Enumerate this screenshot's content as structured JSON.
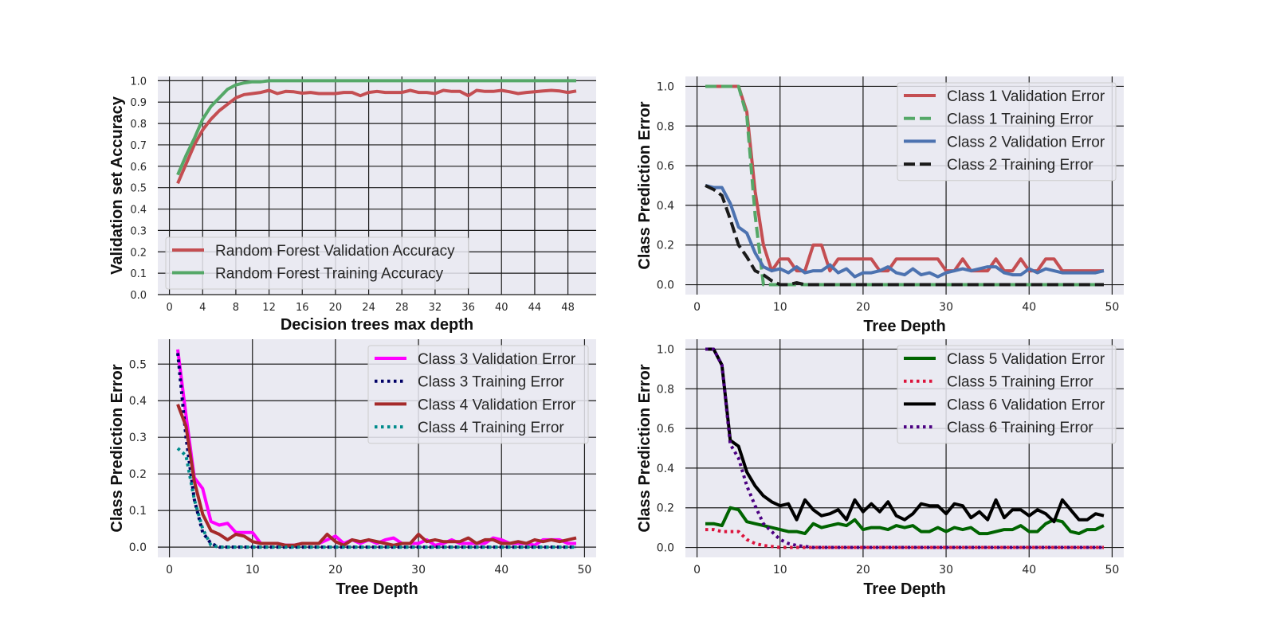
{
  "chart_data": [
    {
      "type": "line",
      "xlabel": "Decision trees max depth",
      "ylabel": "Validation set Accuracy",
      "xlim": [
        -1.4,
        51.4
      ],
      "ylim": [
        0.0,
        1.02
      ],
      "xticks": [
        "0",
        "4",
        "8",
        "12",
        "16",
        "20",
        "24",
        "28",
        "32",
        "36",
        "40",
        "44",
        "48"
      ],
      "yticks": [
        "0.0",
        "0.1",
        "0.2",
        "0.3",
        "0.4",
        "0.5",
        "0.6",
        "0.7",
        "0.8",
        "0.9",
        "1.0"
      ],
      "grid": true,
      "legend": "lower-left",
      "x": [
        1,
        2,
        3,
        4,
        5,
        6,
        7,
        8,
        9,
        10,
        11,
        12,
        13,
        14,
        15,
        16,
        17,
        18,
        19,
        20,
        21,
        22,
        23,
        24,
        25,
        26,
        27,
        28,
        29,
        30,
        31,
        32,
        33,
        34,
        35,
        36,
        37,
        38,
        39,
        40,
        41,
        42,
        43,
        44,
        45,
        46,
        47,
        48,
        49
      ],
      "series": [
        {
          "name": "Random Forest Validation Accuracy",
          "color": "#c44e52",
          "style": "solid",
          "values": [
            0.52,
            0.61,
            0.7,
            0.77,
            0.82,
            0.86,
            0.89,
            0.92,
            0.935,
            0.94,
            0.945,
            0.955,
            0.94,
            0.95,
            0.948,
            0.942,
            0.945,
            0.94,
            0.94,
            0.94,
            0.945,
            0.945,
            0.93,
            0.945,
            0.95,
            0.945,
            0.945,
            0.945,
            0.955,
            0.945,
            0.945,
            0.94,
            0.955,
            0.95,
            0.95,
            0.93,
            0.955,
            0.95,
            0.95,
            0.955,
            0.948,
            0.94,
            0.945,
            0.948,
            0.952,
            0.955,
            0.952,
            0.945,
            0.952
          ]
        },
        {
          "name": "Random Forest Training Accuracy",
          "color": "#55a868",
          "style": "solid",
          "values": [
            0.56,
            0.65,
            0.73,
            0.82,
            0.88,
            0.92,
            0.96,
            0.98,
            0.99,
            0.995,
            0.995,
            1.0,
            1.0,
            1.0,
            1.0,
            1.0,
            1.0,
            1.0,
            1.0,
            1.0,
            1.0,
            1.0,
            1.0,
            1.0,
            1.0,
            1.0,
            1.0,
            1.0,
            1.0,
            1.0,
            1.0,
            1.0,
            1.0,
            1.0,
            1.0,
            1.0,
            1.0,
            1.0,
            1.0,
            1.0,
            1.0,
            1.0,
            1.0,
            1.0,
            1.0,
            1.0,
            1.0,
            1.0,
            1.0
          ]
        }
      ]
    },
    {
      "type": "line",
      "xlabel": "Tree Depth",
      "ylabel": "Class Prediction Error",
      "xlim": [
        -1.4,
        51.4
      ],
      "ylim": [
        -0.05,
        1.05
      ],
      "xticks": [
        "0",
        "10",
        "20",
        "30",
        "40",
        "50"
      ],
      "yticks": [
        "0.0",
        "0.2",
        "0.4",
        "0.6",
        "0.8",
        "1.0"
      ],
      "grid": true,
      "legend": "upper-right",
      "x": [
        1,
        2,
        3,
        4,
        5,
        6,
        7,
        8,
        9,
        10,
        11,
        12,
        13,
        14,
        15,
        16,
        17,
        18,
        19,
        20,
        21,
        22,
        23,
        24,
        25,
        26,
        27,
        28,
        29,
        30,
        31,
        32,
        33,
        34,
        35,
        36,
        37,
        38,
        39,
        40,
        41,
        42,
        43,
        44,
        45,
        46,
        47,
        48,
        49
      ],
      "series": [
        {
          "name": "Class 1 Validation Error",
          "color": "#c44e52",
          "style": "solid",
          "values": [
            1.0,
            1.0,
            1.0,
            1.0,
            1.0,
            0.87,
            0.47,
            0.2,
            0.07,
            0.13,
            0.13,
            0.07,
            0.07,
            0.2,
            0.2,
            0.07,
            0.13,
            0.13,
            0.13,
            0.13,
            0.13,
            0.07,
            0.07,
            0.13,
            0.13,
            0.13,
            0.13,
            0.13,
            0.13,
            0.07,
            0.07,
            0.13,
            0.07,
            0.07,
            0.07,
            0.13,
            0.07,
            0.07,
            0.13,
            0.07,
            0.07,
            0.13,
            0.13,
            0.07,
            0.07,
            0.07,
            0.07,
            0.07,
            0.07
          ]
        },
        {
          "name": "Class 1 Training Error",
          "color": "#55a868",
          "style": "dashed",
          "values": [
            1.0,
            1.0,
            1.0,
            1.0,
            1.0,
            0.85,
            0.35,
            0.0,
            0.0,
            0.0,
            0.0,
            0.0,
            0.0,
            0.0,
            0.0,
            0.0,
            0.0,
            0.0,
            0.0,
            0.0,
            0.0,
            0.0,
            0.0,
            0.0,
            0.0,
            0.0,
            0.0,
            0.0,
            0.0,
            0.0,
            0.0,
            0.0,
            0.0,
            0.0,
            0.0,
            0.0,
            0.0,
            0.0,
            0.0,
            0.0,
            0.0,
            0.0,
            0.0,
            0.0,
            0.0,
            0.0,
            0.0,
            0.0,
            0.0
          ]
        },
        {
          "name": "Class 2 Validation Error",
          "color": "#4c72b0",
          "style": "solid",
          "values": [
            0.5,
            0.49,
            0.49,
            0.41,
            0.29,
            0.26,
            0.16,
            0.09,
            0.07,
            0.08,
            0.06,
            0.09,
            0.06,
            0.07,
            0.07,
            0.1,
            0.06,
            0.08,
            0.04,
            0.06,
            0.06,
            0.07,
            0.09,
            0.06,
            0.05,
            0.08,
            0.05,
            0.06,
            0.04,
            0.06,
            0.07,
            0.08,
            0.07,
            0.08,
            0.09,
            0.09,
            0.06,
            0.05,
            0.05,
            0.08,
            0.06,
            0.08,
            0.07,
            0.06,
            0.06,
            0.06,
            0.06,
            0.06,
            0.07
          ]
        },
        {
          "name": "Class 2 Training Error",
          "color": "#1a1a1a",
          "style": "dashed",
          "values": [
            0.5,
            0.48,
            0.45,
            0.33,
            0.2,
            0.14,
            0.07,
            0.05,
            0.02,
            0.0,
            0.0,
            0.01,
            0.0,
            0.0,
            0.0,
            0.0,
            0.0,
            0.0,
            0.0,
            0.0,
            0.0,
            0.0,
            0.0,
            0.0,
            0.0,
            0.0,
            0.0,
            0.0,
            0.0,
            0.0,
            0.0,
            0.0,
            0.0,
            0.0,
            0.0,
            0.0,
            0.0,
            0.0,
            0.0,
            0.0,
            0.0,
            0.0,
            0.0,
            0.0,
            0.0,
            0.0,
            0.0,
            0.0,
            0.0
          ]
        }
      ]
    },
    {
      "type": "line",
      "xlabel": "Tree Depth",
      "ylabel": "Class Prediction Error",
      "xlim": [
        -1.4,
        51.4
      ],
      "ylim": [
        -0.028,
        0.568
      ],
      "xticks": [
        "0",
        "10",
        "20",
        "30",
        "40",
        "50"
      ],
      "yticks": [
        "0.0",
        "0.1",
        "0.2",
        "0.3",
        "0.4",
        "0.5"
      ],
      "grid": true,
      "legend": "upper-right",
      "x": [
        1,
        2,
        3,
        4,
        5,
        6,
        7,
        8,
        9,
        10,
        11,
        12,
        13,
        14,
        15,
        16,
        17,
        18,
        19,
        20,
        21,
        22,
        23,
        24,
        25,
        26,
        27,
        28,
        29,
        30,
        31,
        32,
        33,
        34,
        35,
        36,
        37,
        38,
        39,
        40,
        41,
        42,
        43,
        44,
        45,
        46,
        47,
        48,
        49
      ],
      "series": [
        {
          "name": "Class 3 Validation Error",
          "color": "#ff00ff",
          "style": "solid",
          "values": [
            0.54,
            0.36,
            0.19,
            0.16,
            0.07,
            0.06,
            0.065,
            0.04,
            0.04,
            0.04,
            0.01,
            0.01,
            0.01,
            0.005,
            0.005,
            0.01,
            0.01,
            0.01,
            0.02,
            0.03,
            0.01,
            0.02,
            0.01,
            0.02,
            0.01,
            0.02,
            0.025,
            0.01,
            0.01,
            0.01,
            0.02,
            0.005,
            0.01,
            0.02,
            0.01,
            0.01,
            0.01,
            0.01,
            0.025,
            0.02,
            0.01,
            0.01,
            0.01,
            0.005,
            0.02,
            0.02,
            0.02,
            0.01,
            0.01
          ]
        },
        {
          "name": "Class 3 Training Error",
          "color": "#000066",
          "style": "dotted",
          "values": [
            0.53,
            0.3,
            0.13,
            0.04,
            0.01,
            0.0,
            0.0,
            0.0,
            0.0,
            0.0,
            0.0,
            0.0,
            0.0,
            0.0,
            0.0,
            0.0,
            0.0,
            0.0,
            0.0,
            0.0,
            0.0,
            0.0,
            0.0,
            0.0,
            0.0,
            0.0,
            0.0,
            0.0,
            0.0,
            0.0,
            0.0,
            0.0,
            0.0,
            0.0,
            0.0,
            0.0,
            0.0,
            0.0,
            0.0,
            0.0,
            0.0,
            0.0,
            0.0,
            0.0,
            0.0,
            0.0,
            0.0,
            0.0,
            0.0
          ]
        },
        {
          "name": "Class 4 Validation Error",
          "color": "#a52a2a",
          "style": "solid",
          "values": [
            0.39,
            0.33,
            0.18,
            0.09,
            0.045,
            0.035,
            0.02,
            0.035,
            0.03,
            0.015,
            0.01,
            0.01,
            0.01,
            0.005,
            0.005,
            0.01,
            0.01,
            0.01,
            0.035,
            0.015,
            0.005,
            0.02,
            0.015,
            0.02,
            0.015,
            0.01,
            0.005,
            0.01,
            0.01,
            0.035,
            0.015,
            0.02,
            0.015,
            0.015,
            0.015,
            0.025,
            0.01,
            0.02,
            0.02,
            0.01,
            0.01,
            0.015,
            0.01,
            0.02,
            0.015,
            0.02,
            0.015,
            0.02,
            0.025
          ]
        },
        {
          "name": "Class 4 Training Error",
          "color": "#008b8b",
          "style": "dotted",
          "values": [
            0.27,
            0.25,
            0.13,
            0.05,
            0.005,
            0.0,
            0.0,
            0.0,
            0.0,
            0.0,
            0.0,
            0.0,
            0.0,
            0.0,
            0.0,
            0.0,
            0.0,
            0.0,
            0.0,
            0.0,
            0.0,
            0.0,
            0.0,
            0.0,
            0.0,
            0.0,
            0.0,
            0.0,
            0.0,
            0.0,
            0.0,
            0.0,
            0.0,
            0.0,
            0.0,
            0.0,
            0.0,
            0.0,
            0.0,
            0.0,
            0.0,
            0.0,
            0.0,
            0.0,
            0.0,
            0.0,
            0.0,
            0.0,
            0.0
          ]
        }
      ]
    },
    {
      "type": "line",
      "xlabel": "Tree Depth",
      "ylabel": "Class Prediction Error",
      "xlim": [
        -1.4,
        51.4
      ],
      "ylim": [
        -0.05,
        1.05
      ],
      "xticks": [
        "0",
        "10",
        "20",
        "30",
        "40",
        "50"
      ],
      "yticks": [
        "0.0",
        "0.2",
        "0.4",
        "0.6",
        "0.8",
        "1.0"
      ],
      "grid": true,
      "legend": "upper-right",
      "x": [
        1,
        2,
        3,
        4,
        5,
        6,
        7,
        8,
        9,
        10,
        11,
        12,
        13,
        14,
        15,
        16,
        17,
        18,
        19,
        20,
        21,
        22,
        23,
        24,
        25,
        26,
        27,
        28,
        29,
        30,
        31,
        32,
        33,
        34,
        35,
        36,
        37,
        38,
        39,
        40,
        41,
        42,
        43,
        44,
        45,
        46,
        47,
        48,
        49
      ],
      "series": [
        {
          "name": "Class 5 Validation Error",
          "color": "#006400",
          "style": "solid",
          "values": [
            0.12,
            0.12,
            0.11,
            0.2,
            0.19,
            0.13,
            0.12,
            0.11,
            0.1,
            0.09,
            0.08,
            0.08,
            0.07,
            0.12,
            0.1,
            0.11,
            0.12,
            0.11,
            0.14,
            0.09,
            0.1,
            0.1,
            0.09,
            0.11,
            0.1,
            0.11,
            0.08,
            0.08,
            0.1,
            0.08,
            0.1,
            0.09,
            0.1,
            0.07,
            0.07,
            0.08,
            0.09,
            0.09,
            0.11,
            0.08,
            0.08,
            0.12,
            0.14,
            0.13,
            0.08,
            0.07,
            0.09,
            0.09,
            0.11
          ]
        },
        {
          "name": "Class 5 Training Error",
          "color": "#dc143c",
          "style": "dotted",
          "values": [
            0.09,
            0.09,
            0.08,
            0.08,
            0.08,
            0.04,
            0.02,
            0.01,
            0.005,
            0.0,
            0.0,
            0.0,
            0.0,
            0.0,
            0.0,
            0.0,
            0.0,
            0.0,
            0.0,
            0.0,
            0.0,
            0.0,
            0.0,
            0.0,
            0.0,
            0.0,
            0.0,
            0.0,
            0.0,
            0.0,
            0.0,
            0.0,
            0.0,
            0.0,
            0.0,
            0.0,
            0.0,
            0.0,
            0.0,
            0.0,
            0.0,
            0.0,
            0.0,
            0.0,
            0.0,
            0.0,
            0.0,
            0.0,
            0.0
          ]
        },
        {
          "name": "Class 6 Validation Error",
          "color": "#000000",
          "style": "solid",
          "values": [
            1.0,
            1.0,
            0.92,
            0.54,
            0.51,
            0.38,
            0.31,
            0.26,
            0.23,
            0.21,
            0.22,
            0.14,
            0.24,
            0.19,
            0.16,
            0.17,
            0.19,
            0.14,
            0.24,
            0.18,
            0.22,
            0.18,
            0.23,
            0.16,
            0.14,
            0.17,
            0.22,
            0.21,
            0.21,
            0.17,
            0.22,
            0.21,
            0.15,
            0.18,
            0.14,
            0.24,
            0.15,
            0.19,
            0.19,
            0.16,
            0.19,
            0.17,
            0.13,
            0.24,
            0.19,
            0.14,
            0.14,
            0.17,
            0.16
          ]
        },
        {
          "name": "Class 6 Training Error",
          "color": "#4b0082",
          "style": "dotted",
          "values": [
            1.0,
            1.0,
            0.92,
            0.52,
            0.45,
            0.31,
            0.21,
            0.12,
            0.08,
            0.04,
            0.02,
            0.01,
            0.005,
            0.0,
            0.0,
            0.0,
            0.0,
            0.0,
            0.0,
            0.0,
            0.0,
            0.0,
            0.0,
            0.0,
            0.0,
            0.0,
            0.0,
            0.0,
            0.0,
            0.0,
            0.0,
            0.0,
            0.0,
            0.0,
            0.0,
            0.0,
            0.0,
            0.0,
            0.0,
            0.0,
            0.0,
            0.0,
            0.0,
            0.0,
            0.0,
            0.0,
            0.0,
            0.0,
            0.0
          ]
        }
      ]
    }
  ]
}
